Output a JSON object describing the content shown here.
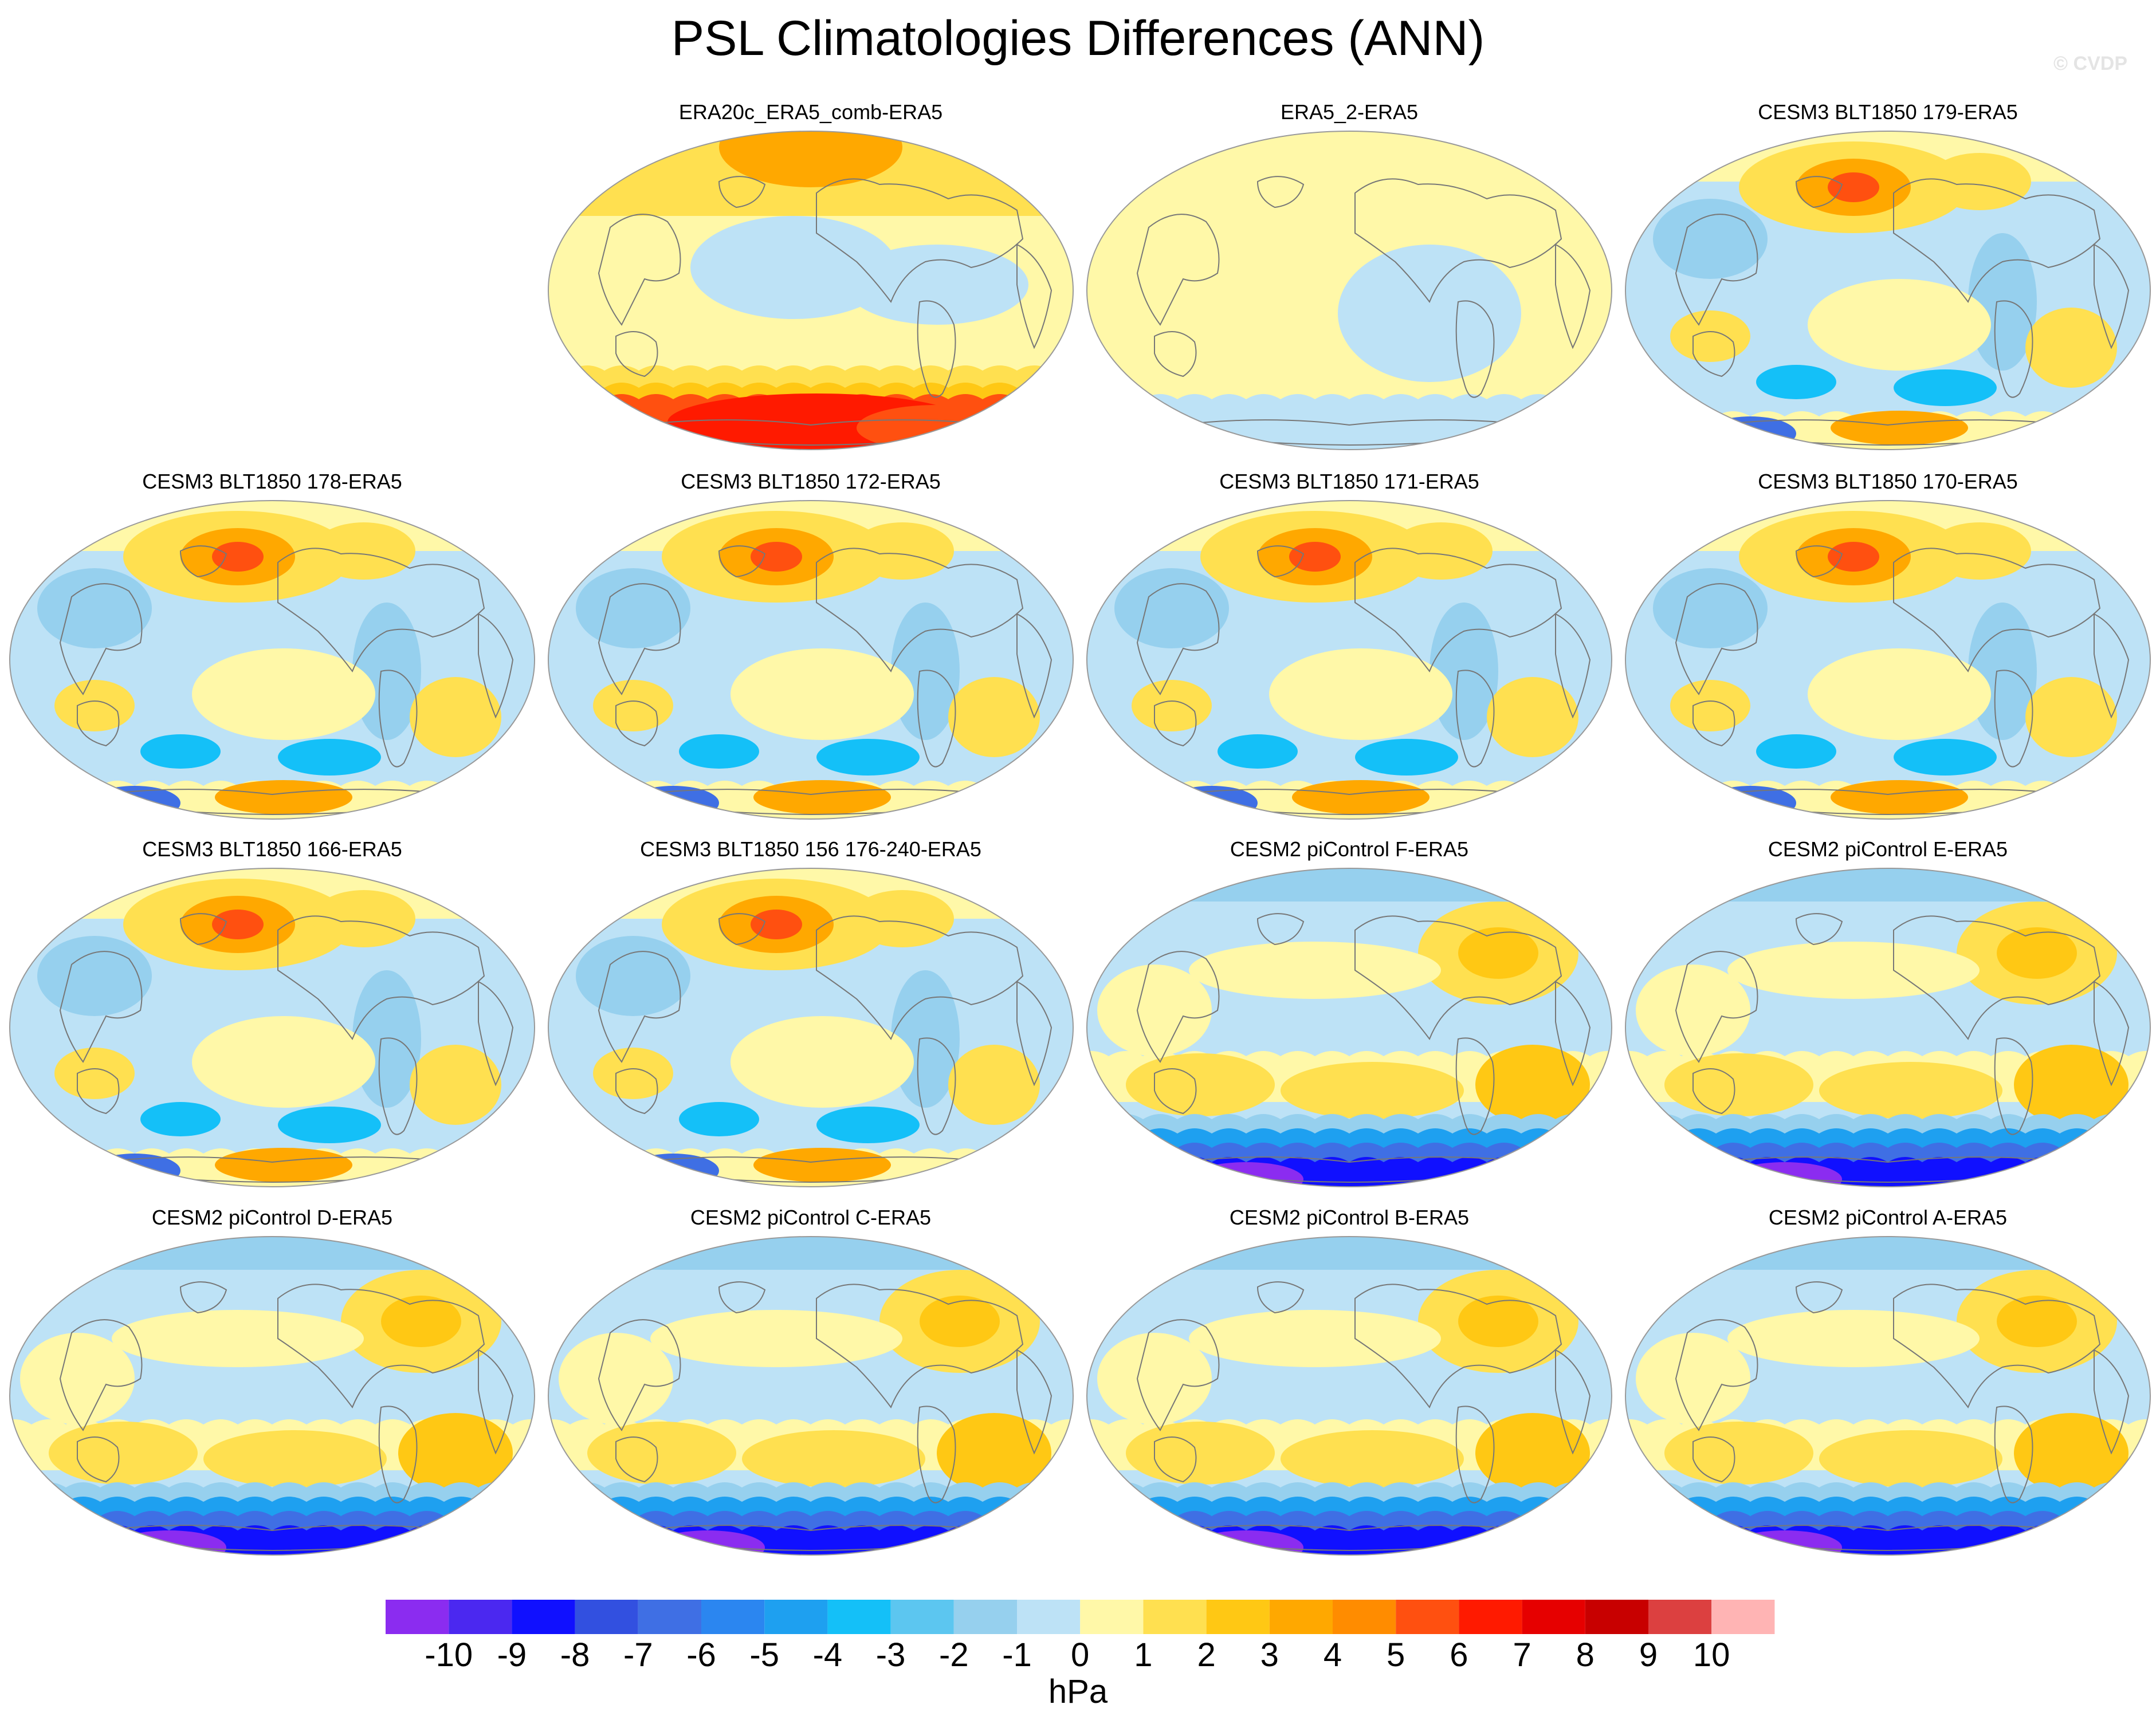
{
  "title": "PSL Climatologies Differences (ANN)",
  "watermark": "© CVDP",
  "panels": [
    {
      "id": "p1",
      "title": "ERA20c_ERA5_comb-ERA5",
      "style": "era20c"
    },
    {
      "id": "p2",
      "title": "ERA5_2-ERA5",
      "style": "era5"
    },
    {
      "id": "p3",
      "title": "CESM3 BLT1850 179-ERA5",
      "style": "cesm3"
    },
    {
      "id": "p4",
      "title": "CESM3 BLT1850 178-ERA5",
      "style": "cesm3"
    },
    {
      "id": "p5",
      "title": "CESM3 BLT1850 172-ERA5",
      "style": "cesm3"
    },
    {
      "id": "p6",
      "title": "CESM3 BLT1850 171-ERA5",
      "style": "cesm3"
    },
    {
      "id": "p7",
      "title": "CESM3 BLT1850 170-ERA5",
      "style": "cesm3"
    },
    {
      "id": "p8",
      "title": "CESM3 BLT1850 166-ERA5",
      "style": "cesm3"
    },
    {
      "id": "p9",
      "title": "CESM3 BLT1850 156 176-240-ERA5",
      "style": "cesm3"
    },
    {
      "id": "p10",
      "title": "CESM2 piControl F-ERA5",
      "style": "cesm2"
    },
    {
      "id": "p11",
      "title": "CESM2 piControl E-ERA5",
      "style": "cesm2"
    },
    {
      "id": "p12",
      "title": "CESM2 piControl D-ERA5",
      "style": "cesm2"
    },
    {
      "id": "p13",
      "title": "CESM2 piControl C-ERA5",
      "style": "cesm2"
    },
    {
      "id": "p14",
      "title": "CESM2 piControl B-ERA5",
      "style": "cesm2"
    },
    {
      "id": "p15",
      "title": "CESM2 piControl A-ERA5",
      "style": "cesm2"
    }
  ],
  "colorbar": {
    "units": "hPa",
    "labels": [
      "-10",
      "-9",
      "-8",
      "-7",
      "-6",
      "-5",
      "-4",
      "-3",
      "-2",
      "-1",
      "0",
      "1",
      "2",
      "3",
      "4",
      "5",
      "6",
      "7",
      "8",
      "9",
      "10"
    ],
    "colors": [
      "#8b2cf0",
      "#4b28f0",
      "#1010ff",
      "#3250e0",
      "#3f6fe4",
      "#2b86f0",
      "#1ea0f0",
      "#14c0f8",
      "#5cc6f0",
      "#96d0ee",
      "#bde2f6",
      "#fff8a8",
      "#ffe050",
      "#ffc814",
      "#ffa800",
      "#ff8c00",
      "#ff5010",
      "#ff1a00",
      "#e60000",
      "#c80000",
      "#dc4040",
      "#ffb4b4"
    ]
  }
}
